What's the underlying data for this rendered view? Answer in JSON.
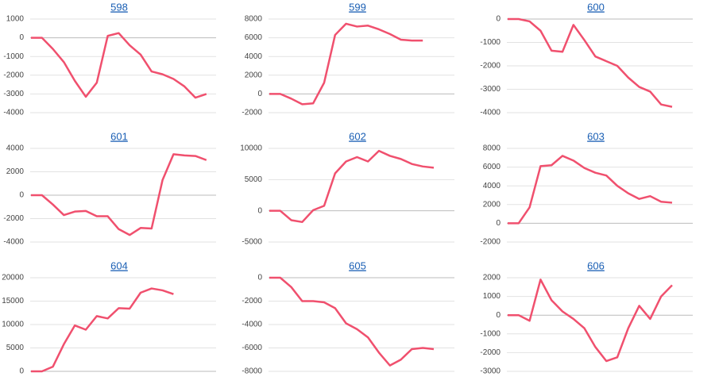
{
  "chart_data": [
    {
      "type": "line",
      "title": "598",
      "color": "#f0506e",
      "ylim": [
        -4000,
        1000
      ],
      "yticks": [
        -4000,
        -3000,
        -2000,
        -1000,
        0,
        1000
      ],
      "grid": true,
      "values": [
        0,
        0,
        -600,
        -1300,
        -2300,
        -3150,
        -2400,
        100,
        250,
        -400,
        -900,
        -1800,
        -1950,
        -2200,
        -2600,
        -3200,
        -3000
      ]
    },
    {
      "type": "line",
      "title": "599",
      "color": "#f0506e",
      "ylim": [
        -2000,
        8000
      ],
      "yticks": [
        -2000,
        0,
        2000,
        4000,
        6000,
        8000
      ],
      "grid": true,
      "values": [
        0,
        0,
        -500,
        -1100,
        -1000,
        1200,
        6300,
        7500,
        7200,
        7300,
        6900,
        6400,
        5800,
        5700,
        5700
      ]
    },
    {
      "type": "line",
      "title": "600",
      "color": "#f0506e",
      "ylim": [
        -4000,
        0
      ],
      "yticks": [
        -4000,
        -3000,
        -2000,
        -1000,
        0
      ],
      "grid": true,
      "values": [
        0,
        0,
        -100,
        -500,
        -1350,
        -1400,
        -250,
        -900,
        -1600,
        -1800,
        -2000,
        -2500,
        -2900,
        -3100,
        -3650,
        -3750
      ]
    },
    {
      "type": "line",
      "title": "601",
      "color": "#f0506e",
      "ylim": [
        -4000,
        4000
      ],
      "yticks": [
        -4000,
        -2000,
        0,
        2000,
        4000
      ],
      "grid": true,
      "values": [
        0,
        0,
        -800,
        -1700,
        -1400,
        -1350,
        -1800,
        -1800,
        -2900,
        -3400,
        -2800,
        -2850,
        1300,
        3500,
        3400,
        3350,
        3000
      ]
    },
    {
      "type": "line",
      "title": "602",
      "color": "#f0506e",
      "ylim": [
        -5000,
        10000
      ],
      "yticks": [
        -5000,
        0,
        5000,
        10000
      ],
      "grid": true,
      "values": [
        0,
        0,
        -1500,
        -1800,
        100,
        800,
        6000,
        7900,
        8600,
        7900,
        9600,
        8800,
        8300,
        7500,
        7100,
        6900
      ]
    },
    {
      "type": "line",
      "title": "603",
      "color": "#f0506e",
      "ylim": [
        -2000,
        8000
      ],
      "yticks": [
        -2000,
        0,
        2000,
        4000,
        6000,
        8000
      ],
      "grid": true,
      "values": [
        0,
        0,
        1700,
        6100,
        6200,
        7200,
        6700,
        5900,
        5400,
        5100,
        4000,
        3200,
        2600,
        2900,
        2300,
        2200
      ]
    },
    {
      "type": "line",
      "title": "604",
      "color": "#f0506e",
      "ylim": [
        0,
        20000
      ],
      "yticks": [
        0,
        5000,
        10000,
        15000,
        20000
      ],
      "grid": true,
      "values": [
        0,
        0,
        1000,
        5800,
        9800,
        8900,
        11800,
        11300,
        13500,
        13400,
        16800,
        17700,
        17300,
        16500
      ]
    },
    {
      "type": "line",
      "title": "605",
      "color": "#f0506e",
      "ylim": [
        -8000,
        0
      ],
      "yticks": [
        -8000,
        -6000,
        -4000,
        -2000,
        0
      ],
      "grid": true,
      "values": [
        0,
        0,
        -800,
        -2000,
        -2000,
        -2100,
        -2600,
        -3900,
        -4400,
        -5100,
        -6400,
        -7500,
        -7000,
        -6100,
        -6000,
        -6100
      ]
    },
    {
      "type": "line",
      "title": "606",
      "color": "#f0506e",
      "ylim": [
        -3000,
        2000
      ],
      "yticks": [
        -3000,
        -2000,
        -1000,
        0,
        1000,
        2000
      ],
      "grid": true,
      "values": [
        0,
        0,
        -300,
        1900,
        800,
        200,
        -200,
        -700,
        -1700,
        -2450,
        -2250,
        -700,
        500,
        -200,
        1000,
        1600
      ]
    }
  ]
}
